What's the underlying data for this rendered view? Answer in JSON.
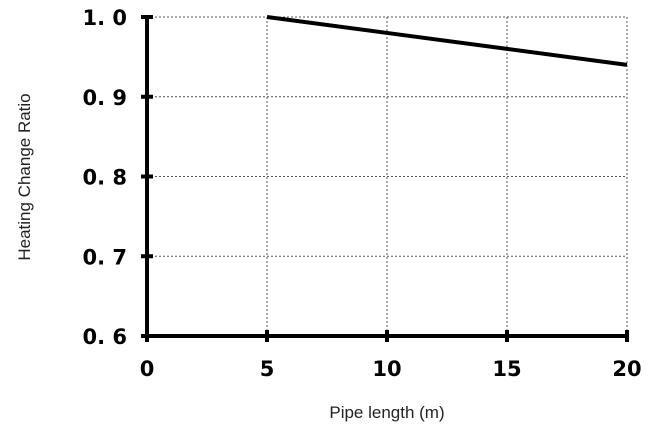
{
  "chart_data": {
    "type": "line",
    "xlabel": "Pipe length (m)",
    "ylabel": "Heating Change Ratio",
    "xlim": [
      0,
      20
    ],
    "ylim": [
      0.6,
      1.0
    ],
    "x_ticks": [
      0,
      5,
      10,
      15,
      20
    ],
    "x_tick_labels": [
      "0",
      "5",
      "10",
      "15",
      "20"
    ],
    "y_ticks": [
      0.6,
      0.7,
      0.8,
      0.9,
      1.0
    ],
    "y_tick_labels": [
      "0. 6",
      "0. 7",
      "0. 8",
      "0. 9",
      "1. 0"
    ],
    "grid": true,
    "series": [
      {
        "x": [
          5,
          10,
          15,
          20
        ],
        "values": [
          1.0,
          0.98,
          0.96,
          0.94
        ]
      }
    ],
    "colors": {
      "line": "#000000",
      "grid": "#555555",
      "axis": "#000000"
    }
  }
}
